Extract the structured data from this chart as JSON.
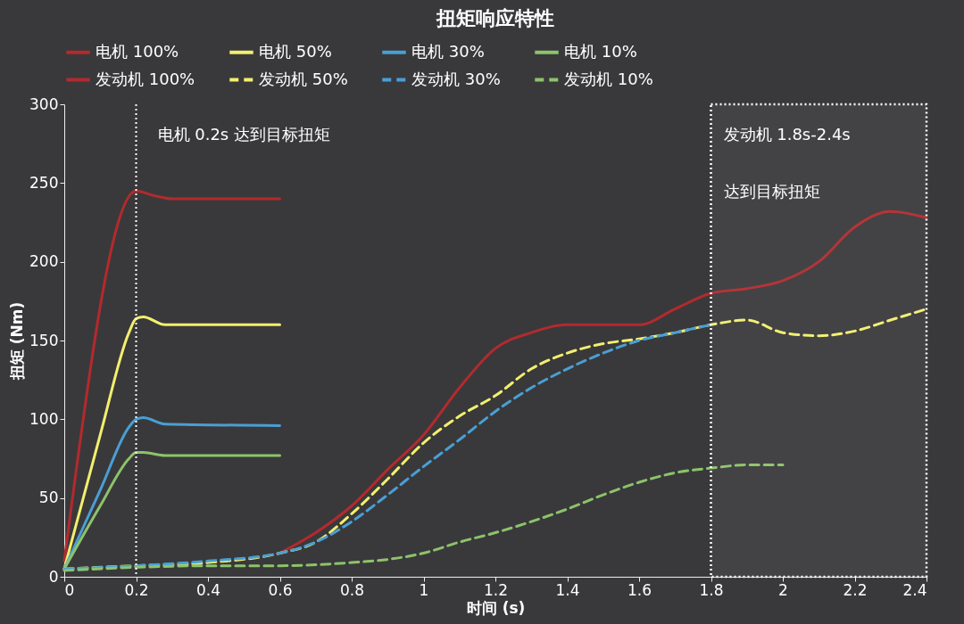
{
  "chart_data": {
    "type": "line",
    "title": "扭矩响应特性",
    "xlabel": "时间 (s)",
    "ylabel": "扭矩 (Nm)",
    "xlim": [
      0,
      2.4
    ],
    "xticks": [
      0,
      0.2,
      0.4,
      0.6,
      0.8,
      1,
      1.2,
      1.4,
      1.6,
      1.8,
      2,
      2.2,
      2.4
    ],
    "ylim": [
      0,
      300
    ],
    "yticks": [
      0,
      50,
      100,
      150,
      200,
      250,
      300
    ],
    "grid": false,
    "legend": "top",
    "marker": "none",
    "series": [
      {
        "name": "电机 100%",
        "color": "#b22a2e",
        "line_style": "solid",
        "x": [
          0,
          0.2,
          0.25,
          0.3,
          0.6
        ],
        "values": [
          10,
          245,
          242,
          240,
          240
        ]
      },
      {
        "name": "电机 50%",
        "color": "#f2ef6e",
        "line_style": "solid",
        "x": [
          0,
          0.1,
          0.18,
          0.2,
          0.22,
          0.28,
          0.6
        ],
        "values": [
          5,
          90,
          155,
          164,
          165,
          160,
          160
        ]
      },
      {
        "name": "电机 30%",
        "color": "#4a9fd4",
        "line_style": "solid",
        "x": [
          0,
          0.1,
          0.18,
          0.2,
          0.22,
          0.28,
          0.6
        ],
        "values": [
          5,
          55,
          95,
          100,
          101,
          97,
          96
        ]
      },
      {
        "name": "电机 10%",
        "color": "#8dc36a",
        "line_style": "solid",
        "x": [
          0,
          0.1,
          0.18,
          0.2,
          0.22,
          0.28,
          0.6
        ],
        "values": [
          5,
          45,
          75,
          79,
          79,
          77,
          77
        ]
      },
      {
        "name": "发动机 100%",
        "color": "#b22a2e",
        "line_style": "solid",
        "x": [
          0.6,
          0.7,
          0.8,
          0.9,
          1,
          1.1,
          1.2,
          1.3,
          1.4,
          1.5,
          1.6,
          1.7,
          1.8,
          1.9,
          2,
          2.1,
          2.2,
          2.3,
          2.4
        ],
        "values": [
          15,
          28,
          45,
          68,
          90,
          120,
          145,
          155,
          160,
          160,
          160,
          170,
          180,
          183,
          188,
          200,
          222,
          232,
          228
        ]
      },
      {
        "name": "发动机 50%",
        "color": "#f2ef6e",
        "line_style": "dashed",
        "x": [
          0,
          0.2,
          0.4,
          0.6,
          0.7,
          0.8,
          0.9,
          1,
          1.1,
          1.2,
          1.3,
          1.4,
          1.5,
          1.6,
          1.7,
          1.8,
          1.9,
          2,
          2.1,
          2.2,
          2.3,
          2.4
        ],
        "values": [
          5,
          7,
          9,
          15,
          22,
          40,
          62,
          85,
          102,
          115,
          132,
          142,
          148,
          151,
          155,
          160,
          163,
          155,
          153,
          156,
          163,
          170
        ]
      },
      {
        "name": "发动机 30%",
        "color": "#4a9fd4",
        "line_style": "dashed",
        "x": [
          0,
          0.2,
          0.4,
          0.6,
          0.7,
          0.8,
          0.9,
          1,
          1.1,
          1.2,
          1.3,
          1.4,
          1.5,
          1.6,
          1.7,
          1.8
        ],
        "values": [
          5,
          7,
          10,
          15,
          22,
          35,
          52,
          70,
          87,
          105,
          120,
          132,
          142,
          150,
          155,
          160
        ]
      },
      {
        "name": "发动机 10%",
        "color": "#8dc36a",
        "line_style": "dashed",
        "x": [
          0,
          0.2,
          0.4,
          0.6,
          0.8,
          0.9,
          1,
          1.1,
          1.2,
          1.3,
          1.4,
          1.5,
          1.6,
          1.7,
          1.8,
          1.9,
          2
        ],
        "values": [
          4,
          6,
          7,
          7,
          9,
          11,
          15,
          22,
          28,
          35,
          43,
          52,
          60,
          66,
          69,
          71,
          71
        ]
      }
    ],
    "ref_lines": [
      {
        "axis": "x",
        "value": 0.2,
        "label": "电机 0.2s 达到目标扭矩",
        "color": "#ffffff",
        "line_style": "dotted"
      }
    ],
    "bands": [
      {
        "axis": "x",
        "from": 1.8,
        "to": 2.4,
        "label": "发动机 1.8s-2.4s",
        "color": "#ffffff"
      }
    ],
    "annotations": [
      "达到目标扭矩"
    ]
  }
}
